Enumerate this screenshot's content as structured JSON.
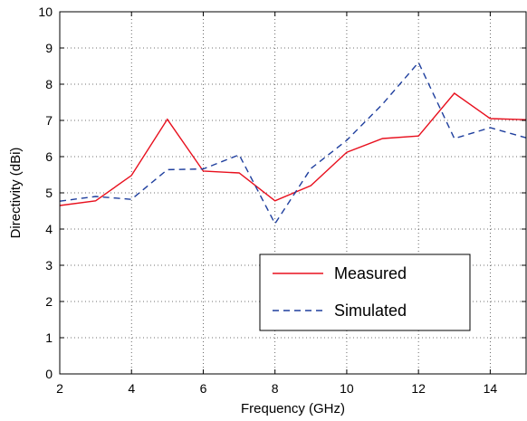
{
  "chart_data": {
    "type": "line",
    "xlabel": "Frequency (GHz)",
    "ylabel": "Directivity (dBi)",
    "xlim": [
      2,
      15
    ],
    "ylim": [
      0,
      10
    ],
    "xticks": [
      2,
      4,
      6,
      8,
      10,
      12,
      14
    ],
    "yticks": [
      0,
      1,
      2,
      3,
      4,
      5,
      6,
      7,
      8,
      9,
      10
    ],
    "grid": true,
    "legend_position": "lower-right",
    "series": [
      {
        "name": "Measured",
        "color": "#e8101e",
        "style": "solid",
        "x": [
          2,
          3,
          4,
          5,
          6,
          7,
          8,
          9,
          10,
          11,
          12,
          13,
          14,
          15
        ],
        "y": [
          4.65,
          4.78,
          5.48,
          7.03,
          5.6,
          5.55,
          4.78,
          5.2,
          6.12,
          6.5,
          6.57,
          7.75,
          7.05,
          7.02
        ]
      },
      {
        "name": "Simulated",
        "color": "#1f3f9e",
        "style": "dashed",
        "x": [
          2,
          3,
          4,
          5,
          6,
          7,
          8,
          9,
          10,
          11,
          12,
          13,
          14,
          15
        ],
        "y": [
          4.77,
          4.9,
          4.82,
          5.64,
          5.66,
          6.05,
          4.15,
          5.67,
          6.45,
          7.45,
          8.6,
          6.5,
          6.8,
          6.52
        ]
      }
    ]
  }
}
